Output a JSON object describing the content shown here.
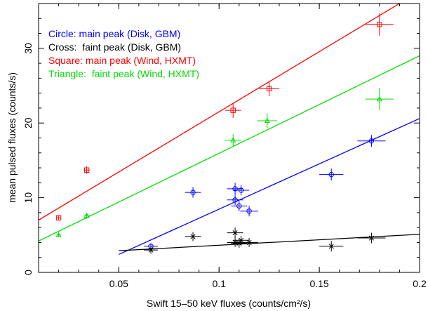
{
  "chart_data": {
    "type": "scatter",
    "title": "",
    "xlabel": "Swift 15–50 keV fluxes (counts/cm²/s)",
    "ylabel": "mean pulsed fluxes (counts/s)",
    "xlim": [
      0.01,
      0.2
    ],
    "ylim": [
      0,
      36
    ],
    "xticks": [
      0.05,
      0.1,
      0.15,
      0.2
    ],
    "xtick_labels": [
      "0.05",
      "0.1",
      "0.15",
      "0.2"
    ],
    "yticks": [
      0,
      10,
      20,
      30
    ],
    "ytick_labels": [
      "0",
      "10",
      "20",
      "30"
    ],
    "grid": false,
    "legend_position": "top-left",
    "legend": [
      {
        "text": "Circle: main peak (Disk, GBM)",
        "color": "#0000ff"
      },
      {
        "text": "Cross:  faint peak (Disk, GBM)",
        "color": "#000000"
      },
      {
        "text": "Square: main peak (Wind, HXMT)",
        "color": "#ff0000"
      },
      {
        "text": "Triangle:  faint peak (Wind, HXMT)",
        "color": "#00dd00"
      }
    ],
    "series": [
      {
        "marker": "circle",
        "color": "#0000ff",
        "points": [
          {
            "x": 0.066,
            "y": 3.5,
            "xerr": 0.0035,
            "yerr": 0.4
          },
          {
            "x": 0.087,
            "y": 10.7,
            "xerr": 0.004,
            "yerr": 0.7
          },
          {
            "x": 0.108,
            "y": 11.2,
            "xerr": 0.004,
            "yerr": 0.8
          },
          {
            "x": 0.108,
            "y": 9.7,
            "xerr": 0.004,
            "yerr": 0.7
          },
          {
            "x": 0.111,
            "y": 11.0,
            "xerr": 0.004,
            "yerr": 0.7
          },
          {
            "x": 0.11,
            "y": 8.9,
            "xerr": 0.004,
            "yerr": 0.7
          },
          {
            "x": 0.115,
            "y": 8.2,
            "xerr": 0.0045,
            "yerr": 0.7
          },
          {
            "x": 0.156,
            "y": 13.1,
            "xerr": 0.006,
            "yerr": 0.8
          },
          {
            "x": 0.176,
            "y": 17.6,
            "xerr": 0.007,
            "yerr": 0.8
          }
        ],
        "fit": [
          [
            0.05,
            2.4
          ],
          [
            0.2,
            20.6
          ]
        ]
      },
      {
        "marker": "cross",
        "color": "#000000",
        "points": [
          {
            "x": 0.066,
            "y": 3.0,
            "xerr": 0.0035,
            "yerr": 0.5
          },
          {
            "x": 0.087,
            "y": 4.8,
            "xerr": 0.004,
            "yerr": 0.6
          },
          {
            "x": 0.108,
            "y": 5.3,
            "xerr": 0.004,
            "yerr": 0.7
          },
          {
            "x": 0.108,
            "y": 4.0,
            "xerr": 0.004,
            "yerr": 0.6
          },
          {
            "x": 0.11,
            "y": 3.9,
            "xerr": 0.004,
            "yerr": 0.6
          },
          {
            "x": 0.111,
            "y": 4.3,
            "xerr": 0.004,
            "yerr": 0.6
          },
          {
            "x": 0.115,
            "y": 4.0,
            "xerr": 0.0045,
            "yerr": 0.6
          },
          {
            "x": 0.156,
            "y": 3.5,
            "xerr": 0.006,
            "yerr": 0.7
          },
          {
            "x": 0.176,
            "y": 4.6,
            "xerr": 0.007,
            "yerr": 0.7
          }
        ],
        "fit": [
          [
            0.05,
            2.9
          ],
          [
            0.2,
            5.1
          ]
        ]
      },
      {
        "marker": "square",
        "color": "#ff0000",
        "points": [
          {
            "x": 0.02,
            "y": 7.3,
            "xerr": 0.001,
            "yerr": 0.3
          },
          {
            "x": 0.034,
            "y": 13.7,
            "xerr": 0.0015,
            "yerr": 0.5
          },
          {
            "x": 0.107,
            "y": 21.7,
            "xerr": 0.004,
            "yerr": 1.0
          },
          {
            "x": 0.125,
            "y": 24.6,
            "xerr": 0.005,
            "yerr": 1.0
          },
          {
            "x": 0.18,
            "y": 33.2,
            "xerr": 0.007,
            "yerr": 1.5
          }
        ],
        "fit": [
          [
            0.01,
            7.0
          ],
          [
            0.19,
            36.0
          ]
        ]
      },
      {
        "marker": "triangle",
        "color": "#00dd00",
        "points": [
          {
            "x": 0.02,
            "y": 5.0,
            "xerr": 0.001,
            "yerr": 0.3
          },
          {
            "x": 0.034,
            "y": 7.6,
            "xerr": 0.0015,
            "yerr": 0.4
          },
          {
            "x": 0.107,
            "y": 17.7,
            "xerr": 0.004,
            "yerr": 0.8
          },
          {
            "x": 0.124,
            "y": 20.3,
            "xerr": 0.005,
            "yerr": 1.0
          },
          {
            "x": 0.18,
            "y": 23.2,
            "xerr": 0.007,
            "yerr": 1.5
          }
        ],
        "fit": [
          [
            0.01,
            4.2
          ],
          [
            0.2,
            29.0
          ]
        ]
      }
    ]
  }
}
